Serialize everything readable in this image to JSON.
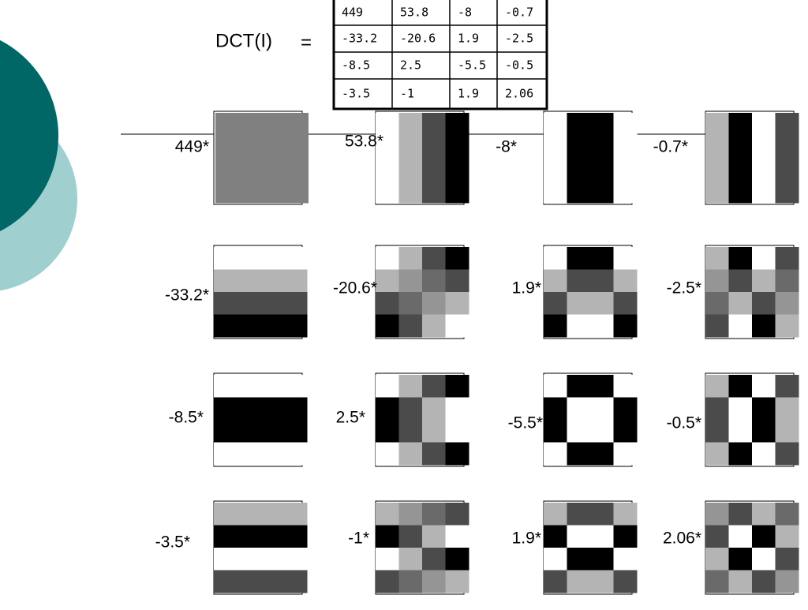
{
  "formula": {
    "lhs": "DCT(I)",
    "eq": "="
  },
  "table": {
    "rows": [
      [
        "449",
        "53.8",
        "-8",
        "-0.7"
      ],
      [
        "-33.2",
        "-20.6",
        "1.9",
        "-2.5"
      ],
      [
        "-8.5",
        "2.5",
        "-5.5",
        "-0.5"
      ],
      [
        "-3.5",
        "-1",
        "1.9",
        "2.06"
      ]
    ]
  },
  "labels": [
    [
      "449*",
      "53.8*",
      "-8*",
      "-0.7*"
    ],
    [
      "-33.2*",
      "-20.6*",
      "1.9*",
      "-2.5*"
    ],
    [
      "-8.5*",
      "2.5*",
      "-5.5*",
      "-0.5*"
    ],
    [
      "-3.5*",
      "-1*",
      "1.9*",
      "2.06*"
    ]
  ]
}
